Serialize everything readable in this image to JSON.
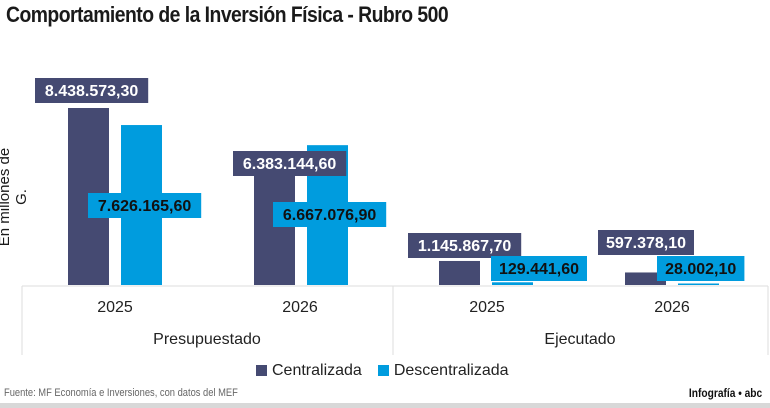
{
  "chart_data": {
    "type": "bar",
    "title": "Comportamiento de la Inversión Física - Rubro 500",
    "ylabel": "En millones de G.",
    "groups": [
      "Presupuestado",
      "Ejecutado"
    ],
    "categories": [
      "2025",
      "2026",
      "2025",
      "2026"
    ],
    "category_groups": [
      "Presupuestado",
      "Presupuestado",
      "Ejecutado",
      "Ejecutado"
    ],
    "series": [
      {
        "name": "Centralizada",
        "color": "#454a72",
        "values": [
          8438573.3,
          6383144.6,
          1145867.7,
          597378.1
        ],
        "labels": [
          "8.438.573,30",
          "6.383.144,60",
          "1.145.867,70",
          "597.378,10"
        ]
      },
      {
        "name": "Descentralizada",
        "color": "#009cde",
        "values": [
          7626165.6,
          6667076.9,
          129441.6,
          28002.1
        ],
        "labels": [
          "7.626.165,60",
          "6.667.076,90",
          "129.441,60",
          "28.002,10"
        ]
      }
    ],
    "legend": "bottom",
    "grid": false
  },
  "source": "Fuente: MF Economía e Inversiones, con datos del MEF",
  "credit": "Infografía • abc"
}
